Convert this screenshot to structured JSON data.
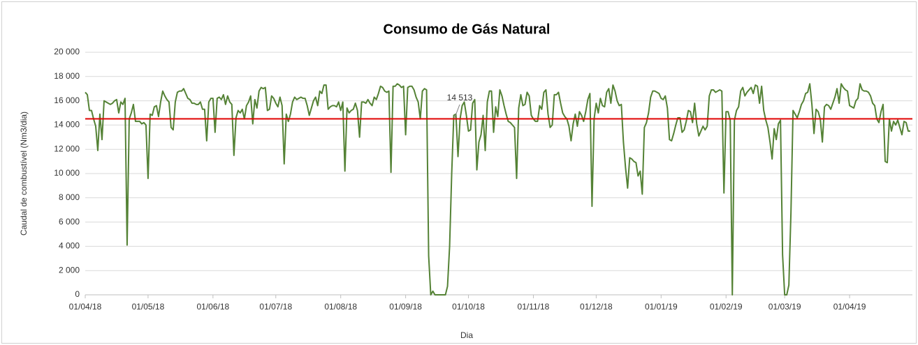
{
  "chart_data": {
    "type": "line",
    "title": "Consumo de Gás Natural",
    "xlabel": "Dia",
    "ylabel": "Caudal de combustível (Nm3/dia)",
    "xlim": [
      "01/04/18",
      "01/05/19"
    ],
    "xticks": [
      "01/04/18",
      "01/05/18",
      "01/06/18",
      "01/07/18",
      "01/08/18",
      "01/09/18",
      "01/10/18",
      "01/11/18",
      "01/12/18",
      "01/01/19",
      "01/02/19",
      "01/03/19",
      "01/04/19"
    ],
    "ylim": [
      0,
      20000
    ],
    "yticks": [
      {
        "value": 0,
        "label": "0"
      },
      {
        "value": 2000,
        "label": "2 000"
      },
      {
        "value": 4000,
        "label": "4 000"
      },
      {
        "value": 6000,
        "label": "6 000"
      },
      {
        "value": 8000,
        "label": "8 000"
      },
      {
        "value": 10000,
        "label": "10 000"
      },
      {
        "value": 12000,
        "label": "12 000"
      },
      {
        "value": 14000,
        "label": "14 000"
      },
      {
        "value": 16000,
        "label": "16 000"
      },
      {
        "value": 18000,
        "label": "18 000"
      },
      {
        "value": 20000,
        "label": "20 000"
      }
    ],
    "grid": true,
    "reference_line": {
      "value": 14513,
      "value_label": "14 513",
      "color": "#e00000"
    },
    "x": [
      "01/04/18",
      "02/04/18",
      "03/04/18",
      "04/04/18",
      "05/04/18",
      "06/04/18",
      "07/04/18",
      "08/04/18",
      "09/04/18",
      "10/04/18",
      "11/04/18",
      "12/04/18",
      "13/04/18",
      "14/04/18",
      "15/04/18",
      "16/04/18",
      "17/04/18",
      "18/04/18",
      "19/04/18",
      "20/04/18",
      "21/04/18",
      "22/04/18",
      "23/04/18",
      "24/04/18",
      "25/04/18",
      "26/04/18",
      "27/04/18",
      "28/04/18",
      "29/04/18",
      "30/04/18",
      "01/05/18",
      "02/05/18",
      "03/05/18",
      "04/05/18",
      "05/05/18",
      "06/05/18",
      "07/05/18",
      "08/05/18",
      "09/05/18",
      "10/05/18",
      "11/05/18",
      "12/05/18",
      "13/05/18",
      "14/05/18",
      "15/05/18",
      "16/05/18",
      "17/05/18",
      "18/05/18",
      "19/05/18",
      "20/05/18",
      "21/05/18",
      "22/05/18",
      "23/05/18",
      "24/05/18",
      "25/05/18",
      "26/05/18",
      "27/05/18",
      "28/05/18",
      "29/05/18",
      "30/05/18",
      "31/05/18",
      "01/06/18",
      "02/06/18",
      "03/06/18",
      "04/06/18",
      "05/06/18",
      "06/06/18",
      "07/06/18",
      "08/06/18",
      "09/06/18",
      "10/06/18",
      "11/06/18",
      "12/06/18",
      "13/06/18",
      "14/06/18",
      "15/06/18",
      "16/06/18",
      "17/06/18",
      "18/06/18",
      "19/06/18",
      "20/06/18",
      "21/06/18",
      "22/06/18",
      "23/06/18",
      "24/06/18",
      "25/06/18",
      "26/06/18",
      "27/06/18",
      "28/06/18",
      "29/06/18",
      "30/06/18",
      "01/07/18",
      "02/07/18",
      "03/07/18",
      "04/07/18",
      "05/07/18",
      "06/07/18",
      "07/07/18",
      "08/07/18",
      "09/07/18",
      "10/07/18",
      "11/07/18",
      "12/07/18",
      "13/07/18",
      "14/07/18",
      "15/07/18",
      "16/07/18",
      "17/07/18",
      "18/07/18",
      "19/07/18",
      "20/07/18",
      "21/07/18",
      "22/07/18",
      "23/07/18",
      "24/07/18",
      "25/07/18",
      "26/07/18",
      "27/07/18",
      "28/07/18",
      "29/07/18",
      "30/07/18",
      "31/07/18",
      "01/08/18",
      "02/08/18",
      "03/08/18",
      "04/08/18",
      "05/08/18",
      "06/08/18",
      "07/08/18",
      "08/08/18",
      "09/08/18",
      "10/08/18",
      "11/08/18",
      "12/08/18",
      "13/08/18",
      "14/08/18",
      "15/08/18",
      "16/08/18",
      "17/08/18",
      "18/08/18",
      "19/08/18",
      "20/08/18",
      "21/08/18",
      "22/08/18",
      "23/08/18",
      "24/08/18",
      "25/08/18",
      "26/08/18",
      "27/08/18",
      "28/08/18",
      "29/08/18",
      "30/08/18",
      "31/08/18",
      "01/09/18",
      "02/09/18",
      "03/09/18",
      "04/09/18",
      "05/09/18",
      "06/09/18",
      "07/09/18",
      "08/09/18",
      "09/09/18",
      "10/09/18",
      "11/09/18",
      "12/09/18",
      "13/09/18",
      "14/09/18",
      "15/09/18",
      "16/09/18",
      "17/09/18",
      "18/09/18",
      "19/09/18",
      "20/09/18",
      "21/09/18",
      "22/09/18",
      "23/09/18",
      "24/09/18",
      "25/09/18",
      "26/09/18",
      "27/09/18",
      "28/09/18",
      "29/09/18",
      "30/09/18",
      "01/10/18",
      "02/10/18",
      "03/10/18",
      "04/10/18",
      "05/10/18",
      "06/10/18",
      "07/10/18",
      "08/10/18",
      "09/10/18",
      "10/10/18",
      "11/10/18",
      "12/10/18",
      "13/10/18",
      "14/10/18",
      "15/10/18",
      "16/10/18",
      "17/10/18",
      "18/10/18",
      "19/10/18",
      "20/10/18",
      "21/10/18",
      "22/10/18",
      "23/10/18",
      "24/10/18",
      "25/10/18",
      "26/10/18",
      "27/10/18",
      "28/10/18",
      "29/10/18",
      "30/10/18",
      "31/10/18",
      "01/11/18",
      "02/11/18",
      "03/11/18",
      "04/11/18",
      "05/11/18",
      "06/11/18",
      "07/11/18",
      "08/11/18",
      "09/11/18",
      "10/11/18",
      "11/11/18",
      "12/11/18",
      "13/11/18",
      "14/11/18",
      "15/11/18",
      "16/11/18",
      "17/11/18",
      "18/11/18",
      "19/11/18",
      "20/11/18",
      "21/11/18",
      "22/11/18",
      "23/11/18",
      "24/11/18",
      "25/11/18",
      "26/11/18",
      "27/11/18",
      "28/11/18",
      "29/11/18",
      "30/11/18",
      "01/12/18",
      "02/12/18",
      "03/12/18",
      "04/12/18",
      "05/12/18",
      "06/12/18",
      "07/12/18",
      "08/12/18",
      "09/12/18",
      "10/12/18",
      "11/12/18",
      "12/12/18",
      "13/12/18",
      "14/12/18",
      "15/12/18",
      "16/12/18",
      "17/12/18",
      "18/12/18",
      "19/12/18",
      "20/12/18",
      "21/12/18",
      "22/12/18",
      "23/12/18",
      "24/12/18",
      "25/12/18",
      "26/12/18",
      "27/12/18",
      "28/12/18",
      "29/12/18",
      "30/12/18",
      "31/12/18",
      "01/01/19",
      "02/01/19",
      "03/01/19",
      "04/01/19",
      "05/01/19",
      "06/01/19",
      "07/01/19",
      "08/01/19",
      "09/01/19",
      "10/01/19",
      "11/01/19",
      "12/01/19",
      "13/01/19",
      "14/01/19",
      "15/01/19",
      "16/01/19",
      "17/01/19",
      "18/01/19",
      "19/01/19",
      "20/01/19",
      "21/01/19",
      "22/01/19",
      "23/01/19",
      "24/01/19",
      "25/01/19",
      "26/01/19",
      "27/01/19",
      "28/01/19",
      "29/01/19",
      "30/01/19",
      "31/01/19",
      "01/02/19",
      "02/02/19",
      "03/02/19",
      "04/02/19",
      "05/02/19",
      "06/02/19",
      "07/02/19",
      "08/02/19",
      "09/02/19",
      "10/02/19",
      "11/02/19",
      "12/02/19",
      "13/02/19",
      "14/02/19",
      "15/02/19",
      "16/02/19",
      "17/02/19",
      "18/02/19",
      "19/02/19",
      "20/02/19",
      "21/02/19",
      "22/02/19",
      "23/02/19",
      "24/02/19",
      "25/02/19",
      "26/02/19",
      "27/02/19",
      "28/02/19",
      "01/03/19",
      "02/03/19",
      "03/03/19",
      "04/03/19",
      "05/03/19",
      "06/03/19",
      "07/03/19",
      "08/03/19",
      "09/03/19",
      "10/03/19",
      "11/03/19",
      "12/03/19",
      "13/03/19",
      "14/03/19",
      "15/03/19",
      "16/03/19",
      "17/03/19",
      "18/03/19",
      "19/03/19",
      "20/03/19",
      "21/03/19",
      "22/03/19",
      "23/03/19",
      "24/03/19",
      "25/03/19",
      "26/03/19",
      "27/03/19",
      "28/03/19",
      "29/03/19",
      "30/03/19",
      "31/03/19",
      "01/04/19",
      "02/04/19",
      "03/04/19",
      "04/04/19",
      "05/04/19",
      "06/04/19",
      "07/04/19",
      "08/04/19",
      "09/04/19",
      "10/04/19",
      "11/04/19",
      "12/04/19",
      "13/04/19",
      "14/04/19",
      "15/04/19",
      "16/04/19",
      "17/04/19",
      "18/04/19",
      "19/04/19",
      "20/04/19",
      "21/04/19",
      "22/04/19",
      "23/04/19",
      "24/04/19",
      "25/04/19",
      "26/04/19",
      "27/04/19",
      "28/04/19",
      "29/04/19",
      "30/04/19"
    ],
    "series": [
      {
        "color": "#548235",
        "values": [
          16700,
          16500,
          15200,
          15200,
          14500,
          13900,
          11900,
          14900,
          12800,
          16000,
          15900,
          15800,
          15700,
          15800,
          16000,
          16100,
          15000,
          15900,
          15700,
          16200,
          4100,
          14500,
          15000,
          15700,
          14300,
          14300,
          14300,
          14100,
          14200,
          14000,
          9600,
          14900,
          14800,
          15500,
          15600,
          14700,
          15900,
          16800,
          16400,
          16100,
          15900,
          13800,
          13600,
          15900,
          16700,
          16800,
          16800,
          17000,
          16600,
          16200,
          16100,
          15800,
          15800,
          15700,
          15700,
          15900,
          15300,
          15300,
          12700,
          15900,
          16200,
          16200,
          13400,
          16200,
          16300,
          16100,
          16500,
          15700,
          16400,
          15900,
          15700,
          11500,
          14600,
          15200,
          15000,
          15300,
          14500,
          15600,
          15900,
          16400,
          14100,
          16100,
          15400,
          16800,
          17100,
          17000,
          17100,
          15200,
          15300,
          16400,
          16200,
          15800,
          15500,
          16300,
          15600,
          10800,
          14900,
          14300,
          14900,
          15900,
          16300,
          16100,
          16200,
          16300,
          16200,
          16200,
          15600,
          14800,
          15400,
          16000,
          16300,
          15600,
          16800,
          16600,
          17300,
          17300,
          15300,
          15500,
          15600,
          15600,
          15500,
          15900,
          15200,
          15900,
          10200,
          15400,
          15000,
          15200,
          15300,
          15800,
          15200,
          13000,
          15900,
          15900,
          15800,
          16100,
          15800,
          15600,
          16300,
          16100,
          16600,
          17200,
          17100,
          16800,
          16700,
          16800,
          10100,
          17200,
          17200,
          17400,
          17300,
          17100,
          17200,
          13200,
          17100,
          17200,
          17200,
          16900,
          16300,
          15900,
          14500,
          16800,
          17000,
          16900,
          3200,
          0,
          300,
          0,
          0,
          0,
          0,
          0,
          0,
          700,
          4000,
          10000,
          14800,
          14900,
          11400,
          14500,
          15600,
          15900,
          14800,
          13500,
          13600,
          15800,
          16100,
          10300,
          12600,
          13200,
          14800,
          11900,
          15900,
          16800,
          16800,
          13400,
          15500,
          14700,
          16900,
          16400,
          15600,
          14900,
          14300,
          14200,
          14000,
          13800,
          9600,
          15400,
          16500,
          15600,
          15700,
          16700,
          16400,
          14800,
          14500,
          14300,
          14300,
          15600,
          15300,
          16700,
          16900,
          14900,
          13800,
          14000,
          16500,
          16500,
          16700,
          15800,
          15000,
          14700,
          14500,
          13900,
          12700,
          14100,
          14900,
          13900,
          15100,
          14800,
          14300,
          15100,
          16100,
          16600,
          7300,
          14500,
          15800,
          15000,
          16200,
          15600,
          15500,
          16700,
          17000,
          15800,
          17300,
          16800,
          16000,
          15600,
          15700,
          12600,
          10500,
          8800,
          11300,
          11200,
          11000,
          10900,
          9800,
          10200,
          8300,
          13800,
          14200,
          15000,
          16300,
          16800,
          16800,
          16700,
          16600,
          16200,
          16100,
          16400,
          15400,
          12800,
          12700,
          13300,
          14000,
          14600,
          14600,
          13400,
          13600,
          14300,
          15200,
          15100,
          14200,
          15800,
          14100,
          13100,
          13500,
          13900,
          13600,
          13900,
          16400,
          16900,
          16900,
          16700,
          16800,
          16900,
          16800,
          8400,
          15100,
          15100,
          14400,
          0,
          14400,
          15200,
          15500,
          16800,
          17100,
          16400,
          16700,
          16900,
          17100,
          16600,
          17300,
          17200,
          15800,
          17200,
          15200,
          14400,
          13800,
          12600,
          11200,
          13700,
          12800,
          14100,
          14400,
          3300,
          0,
          0,
          800,
          6800,
          15200,
          14900,
          14600,
          15100,
          15700,
          16000,
          16600,
          16700,
          17400,
          15700,
          13300,
          15300,
          15100,
          14500,
          12600,
          15500,
          15700,
          15600,
          15300,
          15800,
          16300,
          17000,
          15800,
          17400,
          17100,
          16900,
          16800,
          15600,
          15500,
          15400,
          16000,
          16200,
          17400,
          16900,
          16800,
          16800,
          16700,
          16400,
          15800,
          15600,
          14500,
          14200,
          15100,
          15700,
          11000,
          10900,
          14500,
          13500,
          14300,
          14000,
          14400,
          13800,
          13200,
          14300,
          14200,
          13500,
          13500
        ]
      }
    ]
  }
}
